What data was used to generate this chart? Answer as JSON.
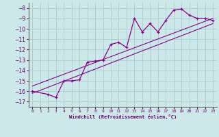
{
  "xlabel": "Windchill (Refroidissement éolien,°C)",
  "ylabel": "",
  "bg_color": "#cce8e8",
  "grid_color": "#aacccc",
  "line_color": "#880088",
  "xlim": [
    -0.5,
    23.5
  ],
  "ylim": [
    -17.5,
    -7.5
  ],
  "xticks": [
    0,
    1,
    2,
    3,
    4,
    5,
    6,
    7,
    8,
    9,
    10,
    11,
    12,
    13,
    14,
    15,
    16,
    17,
    18,
    19,
    20,
    21,
    22,
    23
  ],
  "yticks": [
    -17,
    -16,
    -15,
    -14,
    -13,
    -12,
    -11,
    -10,
    -9,
    -8
  ],
  "series1_x": [
    0,
    2,
    3,
    4,
    5,
    6,
    7,
    8,
    9,
    10,
    11,
    12,
    13,
    14,
    15,
    16,
    17,
    18,
    19,
    20,
    21,
    22,
    23
  ],
  "series1_y": [
    -16.0,
    -16.3,
    -16.6,
    -15.0,
    -15.0,
    -14.9,
    -13.2,
    -13.1,
    -13.0,
    -11.5,
    -11.3,
    -11.8,
    -9.0,
    -10.3,
    -9.5,
    -10.3,
    -9.2,
    -8.2,
    -8.1,
    -8.7,
    -9.0,
    -9.0,
    -9.2
  ],
  "series2_x": [
    0,
    23
  ],
  "series2_y": [
    -15.5,
    -9.0
  ],
  "series3_x": [
    0,
    23
  ],
  "series3_y": [
    -16.2,
    -9.5
  ]
}
